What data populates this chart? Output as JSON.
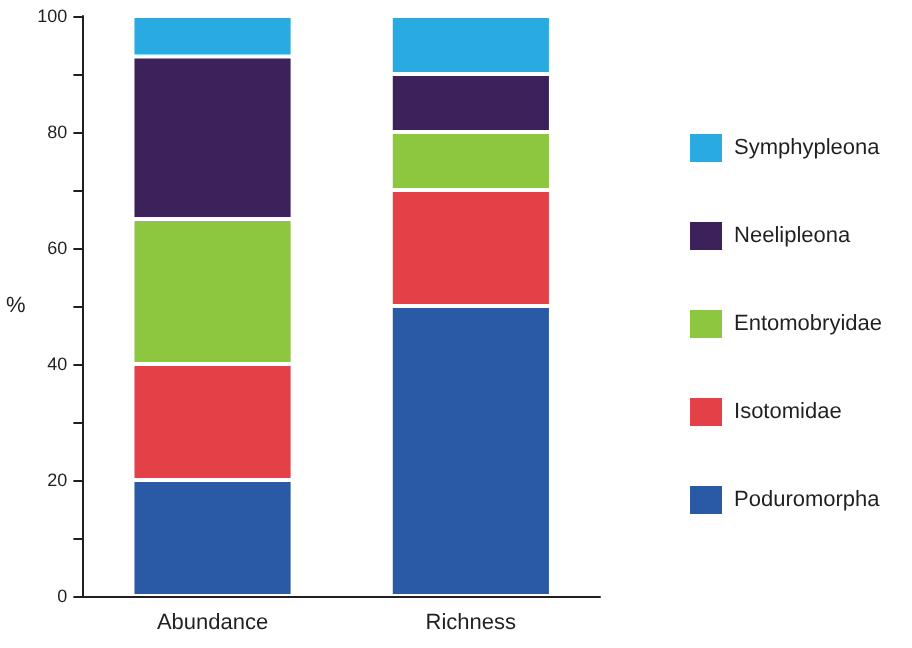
{
  "chart_data": {
    "type": "bar",
    "stacked": true,
    "ylabel": "%",
    "categories": [
      "Abundance",
      "Richness"
    ],
    "series": [
      {
        "name": "Poduromorpha",
        "color": "#2a5aa6",
        "values": [
          20,
          50
        ]
      },
      {
        "name": "Isotomidae",
        "color": "#e34147",
        "values": [
          20,
          20
        ]
      },
      {
        "name": "Entomobryidae",
        "color": "#8dc63f",
        "values": [
          25,
          10
        ]
      },
      {
        "name": "Neelipleona",
        "color": "#3c215a",
        "values": [
          28,
          10
        ]
      },
      {
        "name": "Symphypleona",
        "color": "#29abe2",
        "values": [
          7,
          10
        ]
      }
    ],
    "ylim": [
      0,
      100
    ],
    "yticks": [
      0,
      {
        "value": 10,
        "label": null
      },
      20,
      {
        "value": 30,
        "label": null
      },
      40,
      {
        "value": 50,
        "label": null
      },
      60,
      {
        "value": 70,
        "label": null
      },
      80,
      {
        "value": 90,
        "label": null
      },
      100
    ],
    "grid": false,
    "legend": "right"
  }
}
